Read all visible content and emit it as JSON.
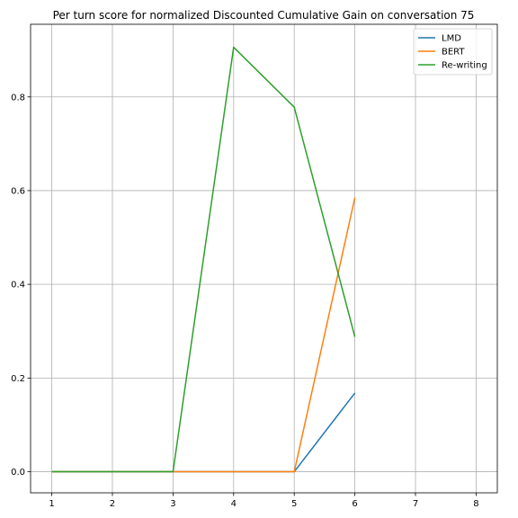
{
  "chart_data": {
    "type": "line",
    "title": "Per turn score for normalized Discounted Cumulative Gain on conversation 75",
    "xlabel": "",
    "ylabel": "",
    "xlim": [
      0.65,
      8.35
    ],
    "ylim": [
      -0.045,
      0.955
    ],
    "xticks": [
      1,
      2,
      3,
      4,
      5,
      6,
      7,
      8
    ],
    "yticks": [
      0.0,
      0.2,
      0.4,
      0.6,
      0.8
    ],
    "ytick_labels": [
      "0.0",
      "0.2",
      "0.4",
      "0.6",
      "0.8"
    ],
    "grid": true,
    "legend_position": "top-right",
    "x": [
      1,
      2,
      3,
      4,
      5,
      6
    ],
    "series": [
      {
        "name": "LMD",
        "color": "#1f77b4",
        "values": [
          0.0,
          0.0,
          0.0,
          0.0,
          0.0,
          0.168
        ]
      },
      {
        "name": "BERT",
        "color": "#ff7f0e",
        "values": [
          0.0,
          0.0,
          0.0,
          0.0,
          0.0,
          0.585
        ]
      },
      {
        "name": "Re-writing",
        "color": "#2ca02c",
        "values": [
          0.0,
          0.0,
          0.0,
          0.906,
          0.778,
          0.288
        ]
      }
    ]
  }
}
